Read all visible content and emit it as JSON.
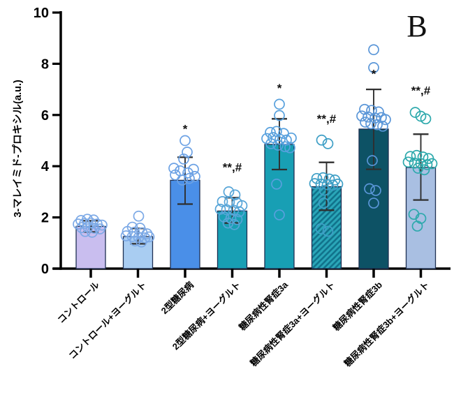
{
  "panel_label": "B",
  "chart_data": {
    "type": "bar",
    "title": "",
    "xlabel": "",
    "ylabel": "3-マレイミド-プロキシル(a.u.)",
    "ylim": [
      0,
      10
    ],
    "yticks": [
      0,
      2,
      4,
      6,
      8,
      10
    ],
    "grid": false,
    "legend": null,
    "categories": [
      "コントロール",
      "コントロール+ヨーグルト",
      "2型糖尿病",
      "2型糖尿病+ヨーグルト",
      "糖尿病性腎症3a",
      "糖尿病性腎症3a+ヨーグルト",
      "糖尿病性腎症3b",
      "糖尿病性腎症3b+ヨーグルト"
    ],
    "series": [
      {
        "name": "3-maleimide-proxyl (a.u.)",
        "values": [
          1.65,
          1.25,
          3.45,
          2.25,
          4.85,
          3.2,
          5.45,
          3.95
        ],
        "errors_up": [
          0.22,
          0.32,
          0.9,
          0.52,
          1.0,
          0.95,
          1.55,
          1.3
        ],
        "errors_down": [
          0.22,
          0.28,
          0.93,
          0.47,
          0.98,
          0.92,
          1.57,
          1.27
        ]
      }
    ],
    "significance": [
      "",
      "",
      "*",
      "**,#",
      "*",
      "**,#",
      "*",
      "**,#"
    ],
    "significance_y": [
      null,
      null,
      5.3,
      3.8,
      6.9,
      5.7,
      7.45,
      6.8
    ],
    "bar_colors": [
      "#c9beef",
      "#a9cdf2",
      "#4a8fe8",
      "#189fb4",
      "#189fb4",
      "#2aa6b8",
      "#0d5265",
      "#a9bfe2"
    ],
    "bar_hatched": [
      false,
      false,
      false,
      false,
      false,
      true,
      false,
      false
    ],
    "hatch_stripe_color": "#11738c",
    "bar_border_color": "#1e2f52",
    "error_bar_color": "#2f2f2f",
    "point_colors": [
      "#7ca9e6",
      "#7ca9e6",
      "#6ba1e4",
      "#57a5d8",
      "#57a0dd",
      "#3f9fc6",
      "#5a96d8",
      "#2da9ac"
    ],
    "points_jitter": [
      [
        [
          -14,
          1.88
        ],
        [
          -5,
          1.93
        ],
        [
          4,
          1.9
        ],
        [
          -18,
          1.74
        ],
        [
          -9,
          1.76
        ],
        [
          0,
          1.78
        ],
        [
          9,
          1.74
        ],
        [
          16,
          1.7
        ],
        [
          -13,
          1.6
        ],
        [
          -4,
          1.62
        ],
        [
          5,
          1.58
        ],
        [
          13,
          1.55
        ],
        [
          -8,
          1.45
        ],
        [
          2,
          1.42
        ]
      ],
      [
        [
          1,
          2.05
        ],
        [
          -8,
          1.62
        ],
        [
          3,
          1.58
        ],
        [
          -15,
          1.45
        ],
        [
          -5,
          1.42
        ],
        [
          6,
          1.4
        ],
        [
          13,
          1.36
        ],
        [
          -17,
          1.28
        ],
        [
          -8,
          1.25
        ],
        [
          1,
          1.22
        ],
        [
          10,
          1.2
        ],
        [
          16,
          1.24
        ],
        [
          -4,
          1.08
        ],
        [
          5,
          1.04
        ]
      ],
      [
        [
          0,
          5.0
        ],
        [
          3,
          4.55
        ],
        [
          -2,
          4.28
        ],
        [
          -16,
          3.92
        ],
        [
          12,
          3.88
        ],
        [
          -7,
          3.82
        ],
        [
          4,
          3.74
        ],
        [
          -14,
          3.66
        ],
        [
          14,
          3.6
        ],
        [
          6,
          3.52
        ],
        [
          -4,
          3.46
        ]
      ],
      [
        [
          -5,
          3.0
        ],
        [
          4,
          2.88
        ],
        [
          -14,
          2.62
        ],
        [
          -4,
          2.6
        ],
        [
          7,
          2.56
        ],
        [
          14,
          2.46
        ],
        [
          -17,
          2.32
        ],
        [
          -8,
          2.3
        ],
        [
          2,
          2.28
        ],
        [
          10,
          2.22
        ],
        [
          -12,
          2.02
        ],
        [
          -2,
          1.96
        ],
        [
          7,
          1.92
        ],
        [
          -6,
          1.78
        ],
        [
          3,
          1.72
        ]
      ],
      [
        [
          0,
          6.42
        ],
        [
          0,
          5.98
        ],
        [
          -13,
          5.32
        ],
        [
          -4,
          5.36
        ],
        [
          6,
          5.28
        ],
        [
          -18,
          5.08
        ],
        [
          -9,
          5.12
        ],
        [
          1,
          5.05
        ],
        [
          10,
          5.02
        ],
        [
          17,
          5.1
        ],
        [
          -12,
          4.88
        ],
        [
          -2,
          4.82
        ],
        [
          8,
          4.76
        ],
        [
          15,
          4.72
        ],
        [
          -4,
          3.3
        ],
        [
          0,
          2.1
        ]
      ],
      [
        [
          -7,
          5.02
        ],
        [
          2,
          4.88
        ],
        [
          -14,
          3.52
        ],
        [
          -5,
          3.55
        ],
        [
          4,
          3.5
        ],
        [
          12,
          3.46
        ],
        [
          -17,
          3.32
        ],
        [
          -8,
          3.3
        ],
        [
          1,
          3.28
        ],
        [
          9,
          3.26
        ],
        [
          16,
          3.3
        ],
        [
          -3,
          3.06
        ],
        [
          -4,
          2.56
        ],
        [
          -8,
          1.56
        ],
        [
          2,
          1.46
        ]
      ],
      [
        [
          0,
          8.55
        ],
        [
          0,
          7.85
        ],
        [
          -13,
          6.22
        ],
        [
          -3,
          6.18
        ],
        [
          7,
          6.12
        ],
        [
          -17,
          5.96
        ],
        [
          -8,
          5.92
        ],
        [
          2,
          5.88
        ],
        [
          11,
          5.9
        ],
        [
          17,
          5.82
        ],
        [
          -12,
          5.72
        ],
        [
          -4,
          5.66
        ],
        [
          5,
          5.62
        ],
        [
          13,
          5.56
        ],
        [
          -2,
          4.22
        ],
        [
          -6,
          3.12
        ],
        [
          3,
          3.05
        ],
        [
          0,
          2.56
        ]
      ],
      [
        [
          -8,
          6.1
        ],
        [
          0,
          5.95
        ],
        [
          7,
          5.85
        ],
        [
          -15,
          4.38
        ],
        [
          -6,
          4.42
        ],
        [
          3,
          4.36
        ],
        [
          11,
          4.3
        ],
        [
          -18,
          4.16
        ],
        [
          -9,
          4.12
        ],
        [
          0,
          4.1
        ],
        [
          9,
          4.06
        ],
        [
          16,
          4.1
        ],
        [
          -4,
          3.92
        ],
        [
          5,
          3.86
        ],
        [
          -10,
          2.12
        ],
        [
          0,
          1.96
        ],
        [
          -5,
          1.66
        ]
      ]
    ]
  }
}
